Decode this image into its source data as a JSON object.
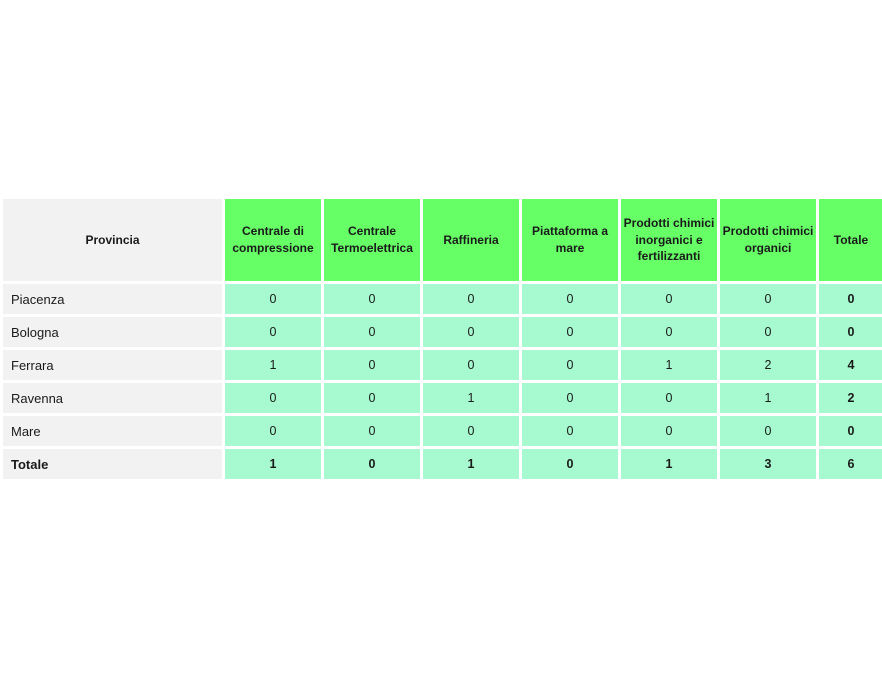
{
  "chart_data": {
    "type": "table",
    "title": "",
    "columns": [
      "Provincia",
      "Centrale di compressione",
      "Centrale Termoelettrica",
      "Raffineria",
      "Piattaforma a mare",
      "Prodotti chimici inorganici e fertilizzanti",
      "Prodotti chimici organici",
      "Totale"
    ],
    "rows": [
      {
        "label": "Piacenza",
        "values": [
          0,
          0,
          0,
          0,
          0,
          0
        ],
        "total": 0,
        "is_total_row": false
      },
      {
        "label": "Bologna",
        "values": [
          0,
          0,
          0,
          0,
          0,
          0
        ],
        "total": 0,
        "is_total_row": false
      },
      {
        "label": "Ferrara",
        "values": [
          1,
          0,
          0,
          0,
          1,
          2
        ],
        "total": 4,
        "is_total_row": false
      },
      {
        "label": "Ravenna",
        "values": [
          0,
          0,
          1,
          0,
          0,
          1
        ],
        "total": 2,
        "is_total_row": false
      },
      {
        "label": "Mare",
        "values": [
          0,
          0,
          0,
          0,
          0,
          0
        ],
        "total": 0,
        "is_total_row": false
      },
      {
        "label": "Totale",
        "values": [
          1,
          0,
          1,
          0,
          1,
          3
        ],
        "total": 6,
        "is_total_row": true
      }
    ],
    "layout": {
      "grid": "white gridlines",
      "header_background": "green",
      "label_column_background": "gray",
      "value_cells_background": "mint"
    }
  },
  "colors": {
    "header_green": "#66FF66",
    "cell_mint": "#A7FACF",
    "label_gray": "#F2F2F2",
    "grid_white": "#FFFFFF",
    "text": "#1A1A1A"
  }
}
